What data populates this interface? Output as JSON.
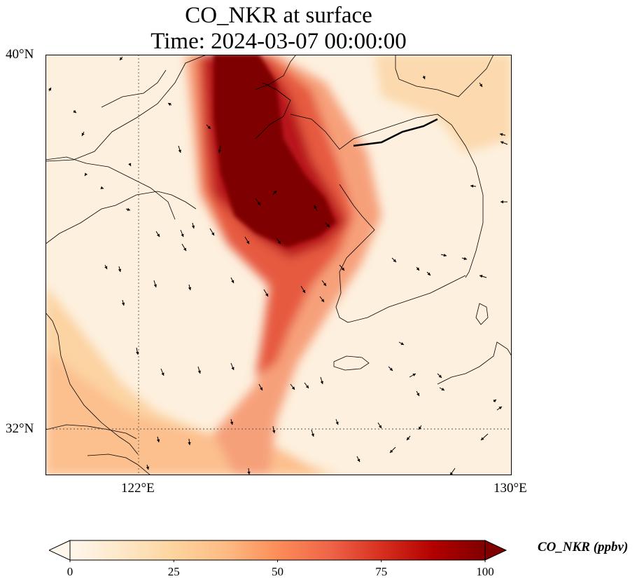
{
  "title": {
    "line1": "CO_NKR at surface",
    "line2": "Time: 2024-03-07 00:00:00"
  },
  "map": {
    "projection": "lat-lon",
    "lon_range": [
      120,
      130
    ],
    "lat_range": [
      31,
      40
    ],
    "gridlines": {
      "lon": [
        122
      ],
      "lat": [
        32
      ],
      "style": "dotted"
    },
    "lat_ticks": [
      {
        "value": 40,
        "label": "40°N"
      },
      {
        "value": 32,
        "label": "32°N"
      }
    ],
    "lon_ticks": [
      {
        "value": 122,
        "label": "122°E"
      },
      {
        "value": 130,
        "label": "130°E"
      }
    ],
    "coastlines": true,
    "wind_vectors": true
  },
  "colorbar": {
    "label": "CO_NKR (ppbv)",
    "colormap": "OrRd",
    "min": 0,
    "max": 100,
    "extend": "both",
    "ticks": [
      {
        "value": 0,
        "label": "0"
      },
      {
        "value": 25,
        "label": "25"
      },
      {
        "value": 50,
        "label": "50"
      },
      {
        "value": 75,
        "label": "75"
      },
      {
        "value": 100,
        "label": "100"
      }
    ],
    "colors": [
      "#fff7ec",
      "#fee8c8",
      "#fdd49e",
      "#fdbb84",
      "#fc8d59",
      "#ef6548",
      "#d7301f",
      "#b30000",
      "#7f0000"
    ]
  }
}
